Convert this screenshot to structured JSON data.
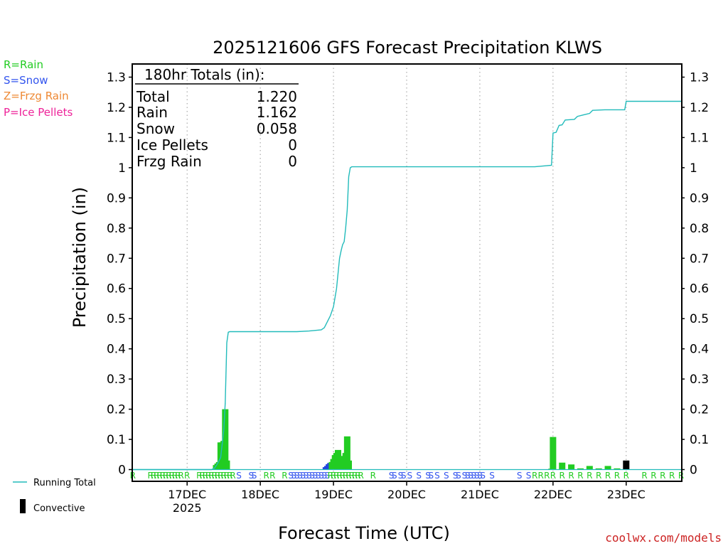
{
  "chart_data": {
    "type": "bar",
    "title": "2025121606 GFS Forecast Precipitation KLWS",
    "xlabel": "Forecast Time (UTC)",
    "ylabel": "Precipitation (in)",
    "ylim": [
      0,
      1.33
    ],
    "xlim_hours": [
      0,
      180
    ],
    "grid": "dotted vertical at day boundaries",
    "yticks": [
      {
        "v": 0,
        "label": "0"
      },
      {
        "v": 0.1,
        "label": "0.1"
      },
      {
        "v": 0.2,
        "label": "0.2"
      },
      {
        "v": 0.3,
        "label": "0.3"
      },
      {
        "v": 0.4,
        "label": "0.4"
      },
      {
        "v": 0.5,
        "label": "0.5"
      },
      {
        "v": 0.6,
        "label": "0.6"
      },
      {
        "v": 0.7,
        "label": "0.7"
      },
      {
        "v": 0.8,
        "label": "0.8"
      },
      {
        "v": 0.9,
        "label": "0.9"
      },
      {
        "v": 1.0,
        "label": "1"
      },
      {
        "v": 1.1,
        "label": "1.1"
      },
      {
        "v": 1.2,
        "label": "1.2"
      },
      {
        "v": 1.3,
        "label": "1.3"
      }
    ],
    "xticks": [
      {
        "h": 18,
        "label": "17DEC",
        "sub": "2025"
      },
      {
        "h": 42,
        "label": "18DEC"
      },
      {
        "h": 66,
        "label": "19DEC"
      },
      {
        "h": 90,
        "label": "20DEC"
      },
      {
        "h": 114,
        "label": "21DEC"
      },
      {
        "h": 138,
        "label": "22DEC"
      },
      {
        "h": 162,
        "label": "23DEC"
      }
    ],
    "totals_box": {
      "header": "180hr Totals (in):",
      "rows": [
        {
          "label": "Total",
          "value": "1.220"
        },
        {
          "label": "Rain",
          "value": "1.162"
        },
        {
          "label": "Snow",
          "value": "0.058"
        },
        {
          "label": "Ice Pellets",
          "value": "0"
        },
        {
          "label": "Frzg Rain",
          "value": "0"
        }
      ]
    },
    "ptype_legend": [
      {
        "text": "R=Rain",
        "color": "#22cc22"
      },
      {
        "text": "S=Snow",
        "color": "#3355ee"
      },
      {
        "text": "Z=Frzg Rain",
        "color": "#ee8833"
      },
      {
        "text": "P=Ice Pellets",
        "color": "#ee2299"
      }
    ],
    "series_legend": [
      {
        "text": "Running Total",
        "color": "#22bbbb",
        "kind": "line"
      },
      {
        "text": "Convective",
        "color": "#000000",
        "kind": "bar"
      }
    ],
    "colors": {
      "rain": "#22cc22",
      "snow": "#2244dd",
      "convective": "#000000",
      "total": "#22bbbb"
    },
    "bars": [
      {
        "h": 27.5,
        "v": 0.015,
        "t": "rain"
      },
      {
        "h": 28.0,
        "v": 0.02,
        "t": "rain"
      },
      {
        "h": 28.5,
        "v": 0.025,
        "t": "rain"
      },
      {
        "h": 29.0,
        "v": 0.09,
        "t": "rain"
      },
      {
        "h": 29.5,
        "v": 0.09,
        "t": "rain"
      },
      {
        "h": 30.0,
        "v": 0.095,
        "t": "rain"
      },
      {
        "h": 30.5,
        "v": 0.2,
        "t": "rain"
      },
      {
        "h": 31.0,
        "v": 0.03,
        "t": "rain"
      },
      {
        "h": 63.5,
        "v": 0.008,
        "t": "snow"
      },
      {
        "h": 64.0,
        "v": 0.012,
        "t": "snow"
      },
      {
        "h": 64.5,
        "v": 0.018,
        "t": "snow"
      },
      {
        "h": 65.0,
        "v": 0.022,
        "t": "snow"
      },
      {
        "h": 65.5,
        "v": 0.025,
        "t": "rain"
      },
      {
        "h": 66.0,
        "v": 0.035,
        "t": "rain"
      },
      {
        "h": 66.5,
        "v": 0.048,
        "t": "rain"
      },
      {
        "h": 67.0,
        "v": 0.055,
        "t": "rain"
      },
      {
        "h": 67.5,
        "v": 0.065,
        "t": "rain"
      },
      {
        "h": 68.0,
        "v": 0.045,
        "t": "rain"
      },
      {
        "h": 69.5,
        "v": 0.045,
        "t": "rain"
      },
      {
        "h": 70.0,
        "v": 0.055,
        "t": "rain"
      },
      {
        "h": 70.5,
        "v": 0.11,
        "t": "rain"
      },
      {
        "h": 71.0,
        "v": 0.03,
        "t": "rain"
      },
      {
        "h": 137.5,
        "v": 0.003,
        "t": "rain"
      },
      {
        "h": 138.0,
        "v": 0.108,
        "t": "rain"
      },
      {
        "h": 141.0,
        "v": 0.023,
        "t": "rain"
      },
      {
        "h": 144.0,
        "v": 0.017,
        "t": "rain"
      },
      {
        "h": 147.0,
        "v": 0.004,
        "t": "rain"
      },
      {
        "h": 150.0,
        "v": 0.012,
        "t": "rain"
      },
      {
        "h": 153.0,
        "v": 0.004,
        "t": "rain"
      },
      {
        "h": 156.0,
        "v": 0.012,
        "t": "rain"
      },
      {
        "h": 159.0,
        "v": 0.004,
        "t": "rain"
      },
      {
        "h": 162.0,
        "v": 0.03,
        "t": "convective"
      }
    ],
    "running_total": [
      {
        "h": 0,
        "v": 0
      },
      {
        "h": 26,
        "v": 0
      },
      {
        "h": 27,
        "v": 0.005
      },
      {
        "h": 28,
        "v": 0.02
      },
      {
        "h": 29,
        "v": 0.04
      },
      {
        "h": 30,
        "v": 0.13
      },
      {
        "h": 30.5,
        "v": 0.22
      },
      {
        "h": 31,
        "v": 0.42
      },
      {
        "h": 31.5,
        "v": 0.455
      },
      {
        "h": 32,
        "v": 0.457
      },
      {
        "h": 54,
        "v": 0.457
      },
      {
        "h": 58,
        "v": 0.459
      },
      {
        "h": 62,
        "v": 0.463
      },
      {
        "h": 63,
        "v": 0.47
      },
      {
        "h": 64,
        "v": 0.49
      },
      {
        "h": 65,
        "v": 0.51
      },
      {
        "h": 66,
        "v": 0.54
      },
      {
        "h": 67,
        "v": 0.6
      },
      {
        "h": 68,
        "v": 0.7
      },
      {
        "h": 68.5,
        "v": 0.725
      },
      {
        "h": 69,
        "v": 0.745
      },
      {
        "h": 69.5,
        "v": 0.755
      },
      {
        "h": 70,
        "v": 0.8
      },
      {
        "h": 70.5,
        "v": 0.86
      },
      {
        "h": 71,
        "v": 0.97
      },
      {
        "h": 71.5,
        "v": 1.0
      },
      {
        "h": 72,
        "v": 1.003
      },
      {
        "h": 132,
        "v": 1.003
      },
      {
        "h": 134,
        "v": 1.005
      },
      {
        "h": 137.5,
        "v": 1.008
      },
      {
        "h": 138,
        "v": 1.115
      },
      {
        "h": 139,
        "v": 1.117
      },
      {
        "h": 140,
        "v": 1.14
      },
      {
        "h": 141,
        "v": 1.142
      },
      {
        "h": 142,
        "v": 1.158
      },
      {
        "h": 145,
        "v": 1.16
      },
      {
        "h": 146,
        "v": 1.17
      },
      {
        "h": 148,
        "v": 1.175
      },
      {
        "h": 150,
        "v": 1.18
      },
      {
        "h": 151,
        "v": 1.19
      },
      {
        "h": 155,
        "v": 1.192
      },
      {
        "h": 161.5,
        "v": 1.192
      },
      {
        "h": 162,
        "v": 1.22
      },
      {
        "h": 180,
        "v": 1.22
      }
    ],
    "ptype_row": [
      {
        "h": 0.2,
        "c": "R"
      },
      {
        "h": 6,
        "c": "R"
      },
      {
        "h": 7,
        "c": "R"
      },
      {
        "h": 8,
        "c": "R"
      },
      {
        "h": 9,
        "c": "R"
      },
      {
        "h": 10,
        "c": "R"
      },
      {
        "h": 11,
        "c": "R"
      },
      {
        "h": 12,
        "c": "R"
      },
      {
        "h": 13,
        "c": "R"
      },
      {
        "h": 14,
        "c": "R"
      },
      {
        "h": 15,
        "c": "R"
      },
      {
        "h": 16,
        "c": "R"
      },
      {
        "h": 18,
        "c": "R"
      },
      {
        "h": 22,
        "c": "R"
      },
      {
        "h": 23,
        "c": "R"
      },
      {
        "h": 24,
        "c": "R"
      },
      {
        "h": 25,
        "c": "R"
      },
      {
        "h": 26,
        "c": "R"
      },
      {
        "h": 27,
        "c": "R"
      },
      {
        "h": 28,
        "c": "R"
      },
      {
        "h": 29,
        "c": "R"
      },
      {
        "h": 30,
        "c": "R"
      },
      {
        "h": 31,
        "c": "R"
      },
      {
        "h": 32,
        "c": "R"
      },
      {
        "h": 33,
        "c": "R"
      },
      {
        "h": 35,
        "c": "S"
      },
      {
        "h": 39,
        "c": "S"
      },
      {
        "h": 40,
        "c": "S"
      },
      {
        "h": 44,
        "c": "R"
      },
      {
        "h": 46,
        "c": "R"
      },
      {
        "h": 50,
        "c": "R"
      },
      {
        "h": 52,
        "c": "S"
      },
      {
        "h": 53,
        "c": "S"
      },
      {
        "h": 54,
        "c": "S"
      },
      {
        "h": 55,
        "c": "S"
      },
      {
        "h": 56,
        "c": "S"
      },
      {
        "h": 57,
        "c": "S"
      },
      {
        "h": 58,
        "c": "S"
      },
      {
        "h": 59,
        "c": "S"
      },
      {
        "h": 60,
        "c": "S"
      },
      {
        "h": 61,
        "c": "S"
      },
      {
        "h": 62,
        "c": "S"
      },
      {
        "h": 63,
        "c": "S"
      },
      {
        "h": 64,
        "c": "S"
      },
      {
        "h": 65,
        "c": "R"
      },
      {
        "h": 66,
        "c": "R"
      },
      {
        "h": 67,
        "c": "R"
      },
      {
        "h": 68,
        "c": "R"
      },
      {
        "h": 69,
        "c": "R"
      },
      {
        "h": 70,
        "c": "R"
      },
      {
        "h": 71,
        "c": "R"
      },
      {
        "h": 72,
        "c": "R"
      },
      {
        "h": 73,
        "c": "R"
      },
      {
        "h": 74,
        "c": "R"
      },
      {
        "h": 75,
        "c": "R"
      },
      {
        "h": 79,
        "c": "R"
      },
      {
        "h": 85,
        "c": "S"
      },
      {
        "h": 86,
        "c": "S"
      },
      {
        "h": 88,
        "c": "S"
      },
      {
        "h": 89,
        "c": "S"
      },
      {
        "h": 91,
        "c": "S"
      },
      {
        "h": 94,
        "c": "S"
      },
      {
        "h": 97,
        "c": "S"
      },
      {
        "h": 98,
        "c": "S"
      },
      {
        "h": 100,
        "c": "S"
      },
      {
        "h": 103,
        "c": "S"
      },
      {
        "h": 106,
        "c": "S"
      },
      {
        "h": 107,
        "c": "S"
      },
      {
        "h": 109,
        "c": "S"
      },
      {
        "h": 110,
        "c": "S"
      },
      {
        "h": 111,
        "c": "S"
      },
      {
        "h": 112,
        "c": "S"
      },
      {
        "h": 113,
        "c": "S"
      },
      {
        "h": 114,
        "c": "S"
      },
      {
        "h": 115,
        "c": "S"
      },
      {
        "h": 118,
        "c": "S"
      },
      {
        "h": 127,
        "c": "S"
      },
      {
        "h": 130,
        "c": "S"
      },
      {
        "h": 132,
        "c": "R"
      },
      {
        "h": 134,
        "c": "R"
      },
      {
        "h": 136,
        "c": "R"
      },
      {
        "h": 138,
        "c": "R"
      },
      {
        "h": 141,
        "c": "R"
      },
      {
        "h": 144,
        "c": "R"
      },
      {
        "h": 147,
        "c": "R"
      },
      {
        "h": 150,
        "c": "R"
      },
      {
        "h": 153,
        "c": "R"
      },
      {
        "h": 156,
        "c": "R"
      },
      {
        "h": 159,
        "c": "R"
      },
      {
        "h": 162,
        "c": "R"
      },
      {
        "h": 168,
        "c": "R"
      },
      {
        "h": 171,
        "c": "R"
      },
      {
        "h": 174,
        "c": "R"
      },
      {
        "h": 177,
        "c": "R"
      },
      {
        "h": 180,
        "c": "R"
      }
    ],
    "credit": "coolwx.com/models"
  }
}
